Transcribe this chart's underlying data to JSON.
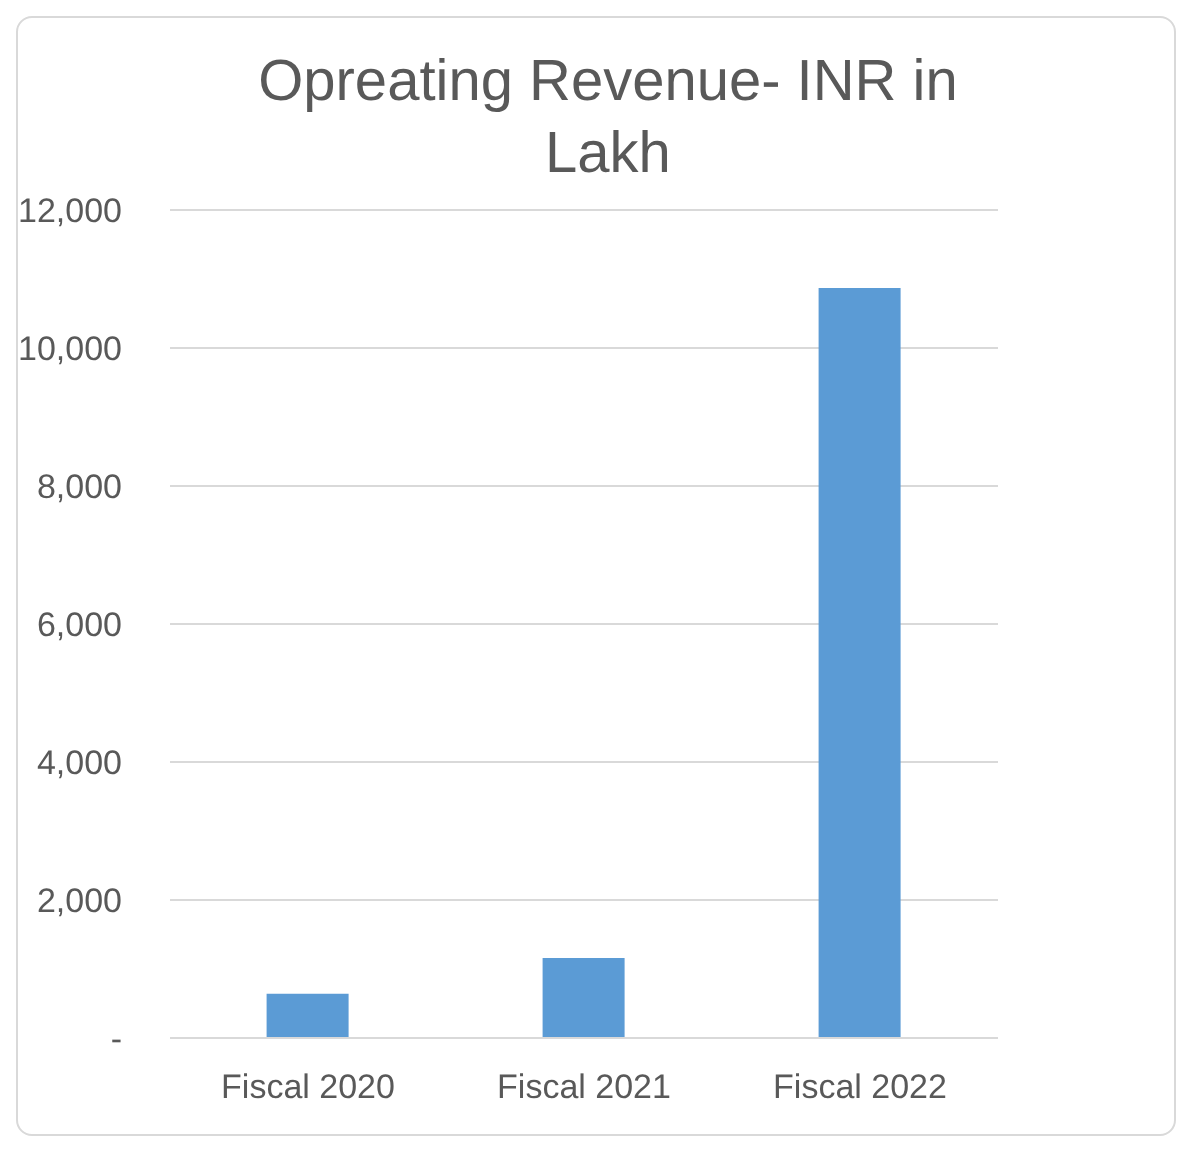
{
  "chart_data": {
    "type": "bar",
    "title": "Opreating Revenue- INR in Lakh",
    "categories": [
      "Fiscal 2020",
      "Fiscal 2021",
      "Fiscal 2022"
    ],
    "values": [
      640,
      1160,
      10870
    ],
    "color": "#5b9bd5",
    "ylim": [
      0,
      12000
    ],
    "yticks": [
      {
        "value": 0,
        "label": "-"
      },
      {
        "value": 2000,
        "label": "2,000"
      },
      {
        "value": 4000,
        "label": "4,000"
      },
      {
        "value": 6000,
        "label": "6,000"
      },
      {
        "value": 8000,
        "label": "8,000"
      },
      {
        "value": 10000,
        "label": "10,000"
      },
      {
        "value": 12000,
        "label": "12,000"
      }
    ],
    "grid": "y"
  }
}
